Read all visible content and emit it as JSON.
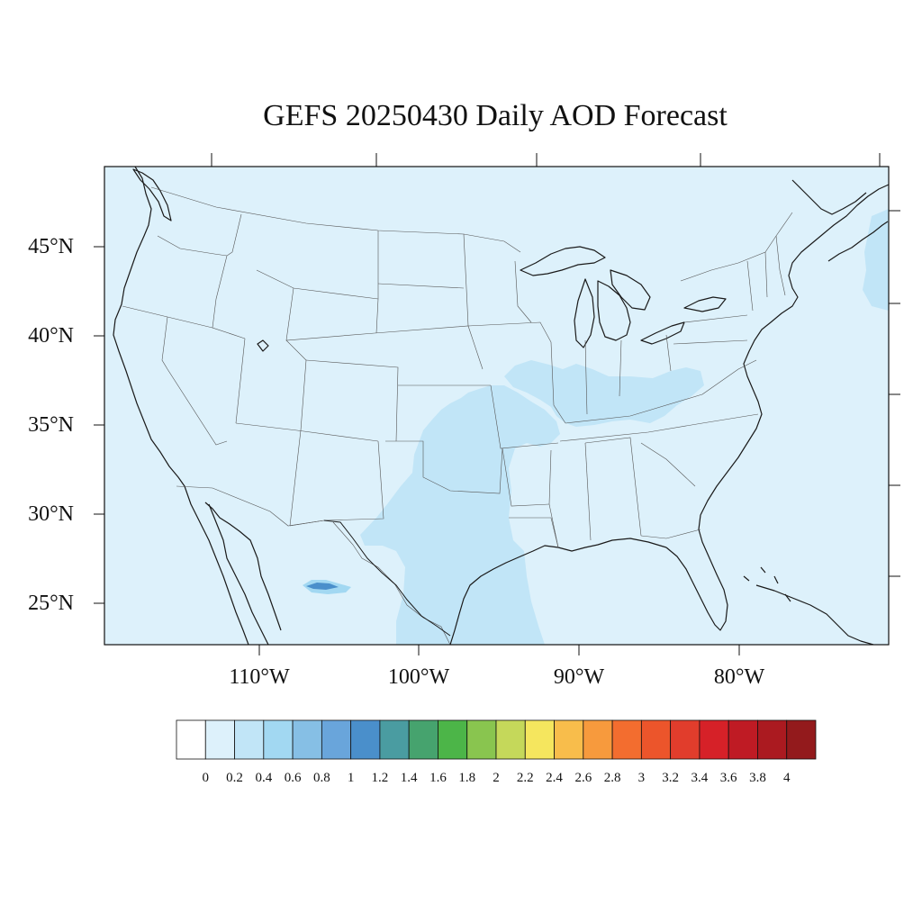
{
  "title": "GEFS 20250430 Daily AOD Forecast",
  "map": {
    "projection": "lambert-like",
    "background_color": "#ddf1fb",
    "latitude_labels": [
      "45°N",
      "40°N",
      "35°N",
      "30°N",
      "25°N"
    ],
    "longitude_labels": [
      "110°W",
      "100°W",
      "90°W",
      "80°W"
    ],
    "features": [
      "coastlines",
      "state-boundaries",
      "country-boundaries"
    ],
    "highlight_regions": [
      {
        "name": "south-central-plume",
        "aod_range": "0.2-0.4",
        "color": "#c1e5f7"
      },
      {
        "name": "ohio-valley-plume",
        "aod_range": "0.2-0.4",
        "color": "#c1e5f7"
      },
      {
        "name": "nova-scotia-patch",
        "aod_range": "0.2-0.4",
        "color": "#c1e5f7"
      },
      {
        "name": "mexico-hotspot",
        "aod_range": "1.0-1.2",
        "color": "#4a8fcb"
      }
    ]
  },
  "colorbar": {
    "labels": [
      "0",
      "0.2",
      "0.4",
      "0.6",
      "0.8",
      "1",
      "1.2",
      "1.4",
      "1.6",
      "1.8",
      "2",
      "2.2",
      "2.4",
      "2.6",
      "2.8",
      "3",
      "3.2",
      "3.4",
      "3.6",
      "3.8",
      "4"
    ],
    "colors": [
      "#ffffff",
      "#ddf1fb",
      "#c1e5f7",
      "#a2d8f2",
      "#86bfe5",
      "#69a5db",
      "#4a8fcb",
      "#4a9ca1",
      "#46a36e",
      "#4cb548",
      "#89c54f",
      "#c5d85a",
      "#f5e65e",
      "#f8bd4b",
      "#f79a3d",
      "#f36d2f",
      "#ec552b",
      "#e13d2c",
      "#d62128",
      "#bf1b24",
      "#ab1a20",
      "#931a1c"
    ]
  }
}
